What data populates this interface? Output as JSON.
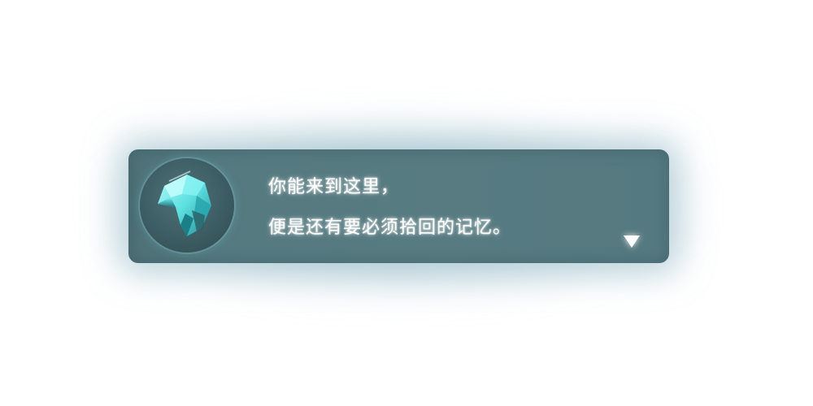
{
  "dialog": {
    "lines": [
      "你能来到这里，",
      "便是还有要必须拾回的记忆。"
    ],
    "portrait_icon": "crystal-portrait-icon",
    "next_icon": "triangle-down-icon"
  },
  "colors": {
    "panel": "#577b81",
    "portrait_bg": "#3c5d63",
    "crystal": "#5ee6e6",
    "text": "#ffffff"
  }
}
